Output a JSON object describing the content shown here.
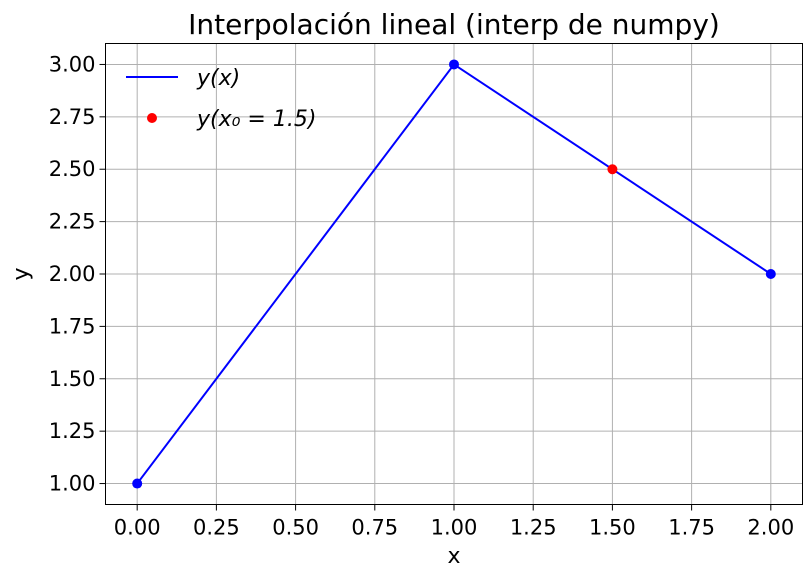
{
  "chart_data": {
    "type": "line",
    "title": "Interpolación lineal (interp de numpy)",
    "xlabel": "x",
    "ylabel": "y",
    "xlim": [
      -0.1,
      2.1
    ],
    "ylim": [
      0.9,
      3.1
    ],
    "xticks": [
      0.0,
      0.25,
      0.5,
      0.75,
      1.0,
      1.25,
      1.5,
      1.75,
      2.0
    ],
    "xtick_labels": [
      "0.00",
      "0.25",
      "0.50",
      "0.75",
      "1.00",
      "1.25",
      "1.50",
      "1.75",
      "2.00"
    ],
    "yticks": [
      1.0,
      1.25,
      1.5,
      1.75,
      2.0,
      2.25,
      2.5,
      2.75,
      3.0
    ],
    "ytick_labels": [
      "1.00",
      "1.25",
      "1.50",
      "1.75",
      "2.00",
      "2.25",
      "2.50",
      "2.75",
      "3.00"
    ],
    "grid": true,
    "legend_position": "top-left",
    "series": [
      {
        "name": "y(x)",
        "legend_label": "y(x)",
        "kind": "line-with-markers",
        "color": "#0000ff",
        "x": [
          0.0,
          1.0,
          2.0
        ],
        "y": [
          1.0,
          3.0,
          2.0
        ]
      },
      {
        "name": "y(x0 = 1.5)",
        "legend_label": "y(x₀ = 1.5)",
        "kind": "marker",
        "color": "#ff0000",
        "x": [
          1.5
        ],
        "y": [
          2.5
        ]
      }
    ]
  }
}
